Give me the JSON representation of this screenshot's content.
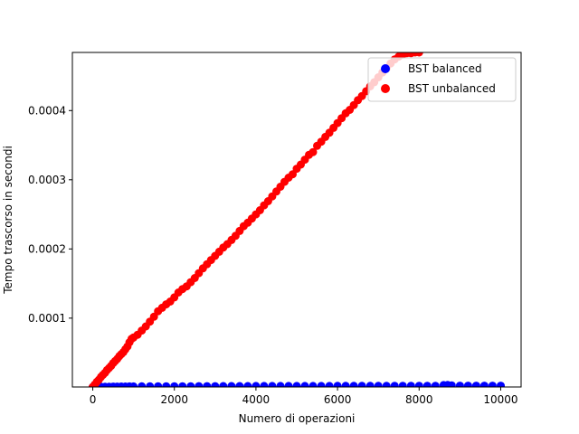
{
  "chart_data": {
    "type": "scatter",
    "title": "",
    "xlabel": "Numero di operazioni",
    "ylabel": "Tempo trascorso in secondi",
    "xlim": [
      -500,
      10500
    ],
    "ylim": [
      5e-07,
      0.000484
    ],
    "xticks": [
      0,
      2000,
      4000,
      6000,
      8000,
      10000
    ],
    "xtick_labels": [
      "0",
      "2000",
      "4000",
      "6000",
      "8000",
      "10000"
    ],
    "yticks": [
      0.0001,
      0.0002,
      0.0003,
      0.0004
    ],
    "ytick_labels": [
      "0.0001",
      "0.0002",
      "0.0003",
      "0.0004"
    ],
    "grid": false,
    "legend_position": "upper right",
    "series": [
      {
        "name": "BST balanced",
        "color": "#0000ff",
        "x": [
          0,
          100,
          200,
          300,
          400,
          500,
          600,
          700,
          800,
          900,
          1000,
          1200,
          1400,
          1600,
          1800,
          2000,
          2200,
          2400,
          2600,
          2800,
          3000,
          3200,
          3400,
          3600,
          3800,
          4000,
          4200,
          4400,
          4600,
          4800,
          5000,
          5200,
          5400,
          5600,
          5800,
          6000,
          6200,
          6400,
          6600,
          6800,
          7000,
          7200,
          7400,
          7600,
          7800,
          8000,
          8200,
          8400,
          8600,
          8700,
          8800,
          9000,
          9200,
          9400,
          9600,
          9800,
          10000
        ],
        "y": [
          5e-07,
          6e-07,
          7e-07,
          8e-07,
          9e-07,
          1e-06,
          1e-06,
          1.1e-06,
          1.2e-06,
          1.3e-06,
          1.3e-06,
          1.4e-06,
          1.4e-06,
          1.5e-06,
          1.5e-06,
          1.6e-06,
          1.6e-06,
          1.6e-06,
          1.7e-06,
          1.7e-06,
          1.7e-06,
          1.8e-06,
          1.8e-06,
          1.8e-06,
          1.8e-06,
          1.9e-06,
          1.9e-06,
          1.9e-06,
          1.9e-06,
          2e-06,
          2e-06,
          2e-06,
          2e-06,
          2e-06,
          2e-06,
          2.1e-06,
          2.1e-06,
          2.1e-06,
          2.1e-06,
          2.1e-06,
          2.1e-06,
          2.1e-06,
          2.2e-06,
          2.2e-06,
          2.2e-06,
          2.2e-06,
          2.2e-06,
          2.2e-06,
          3.2e-06,
          3.5e-06,
          2.8e-06,
          2.3e-06,
          2.3e-06,
          2.3e-06,
          2.3e-06,
          2.3e-06,
          2.3e-06
        ]
      },
      {
        "name": "BST unbalanced",
        "color": "#ff0000",
        "x": [
          0,
          50,
          100,
          150,
          200,
          250,
          300,
          350,
          400,
          450,
          500,
          550,
          600,
          650,
          700,
          750,
          800,
          850,
          900,
          950,
          1000,
          1100,
          1200,
          1300,
          1400,
          1500,
          1600,
          1700,
          1800,
          1900,
          2000,
          2100,
          2200,
          2300,
          2400,
          2500,
          2600,
          2700,
          2800,
          2900,
          3000,
          3100,
          3200,
          3300,
          3400,
          3500,
          3600,
          3700,
          3800,
          3900,
          4000,
          4100,
          4200,
          4300,
          4400,
          4500,
          4600,
          4700,
          4800,
          4900,
          5000,
          5100,
          5200,
          5300,
          5400,
          5500,
          5600,
          5700,
          5800,
          5900,
          6000,
          6100,
          6200,
          6300,
          6400,
          6500,
          6600,
          6700,
          6800,
          6900,
          7000,
          7100,
          7200,
          7300,
          7400,
          7500,
          7600,
          7700,
          7800,
          7900,
          8000
        ],
        "y": [
          5e-07,
          4e-06,
          8e-06,
          1.1e-05,
          1.5e-05,
          1.8e-05,
          2.1e-05,
          2.5e-05,
          2.8e-05,
          3.1e-05,
          3.5e-05,
          3.8e-05,
          4.1e-05,
          4.5e-05,
          4.8e-05,
          5.1e-05,
          5.5e-05,
          5.9e-05,
          6.5e-05,
          7e-05,
          7.2e-05,
          7.6e-05,
          8.2e-05,
          8.8e-05,
          9.5e-05,
          0.000102,
          0.00011,
          0.000115,
          0.00012,
          0.000124,
          0.00013,
          0.000137,
          0.000142,
          0.000146,
          0.000152,
          0.000158,
          0.000165,
          0.000172,
          0.000178,
          0.000184,
          0.00019,
          0.000196,
          0.000202,
          0.000207,
          0.000213,
          0.000219,
          0.000226,
          0.000233,
          0.000238,
          0.000244,
          0.00025,
          0.000256,
          0.000263,
          0.000269,
          0.000276,
          0.000283,
          0.00029,
          0.000297,
          0.000303,
          0.000308,
          0.000316,
          0.000322,
          0.000329,
          0.000336,
          0.00034,
          0.000349,
          0.000355,
          0.000362,
          0.000368,
          0.000375,
          0.000382,
          0.000389,
          0.000396,
          0.000401,
          0.000408,
          0.000415,
          0.000421,
          0.000428,
          0.000435,
          0.000441,
          0.000448,
          0.000455,
          0.000461,
          0.000468,
          0.000474,
          0.000478,
          0.000481,
          0.000483,
          0.000483,
          0.000484,
          0.000484
        ]
      }
    ]
  }
}
